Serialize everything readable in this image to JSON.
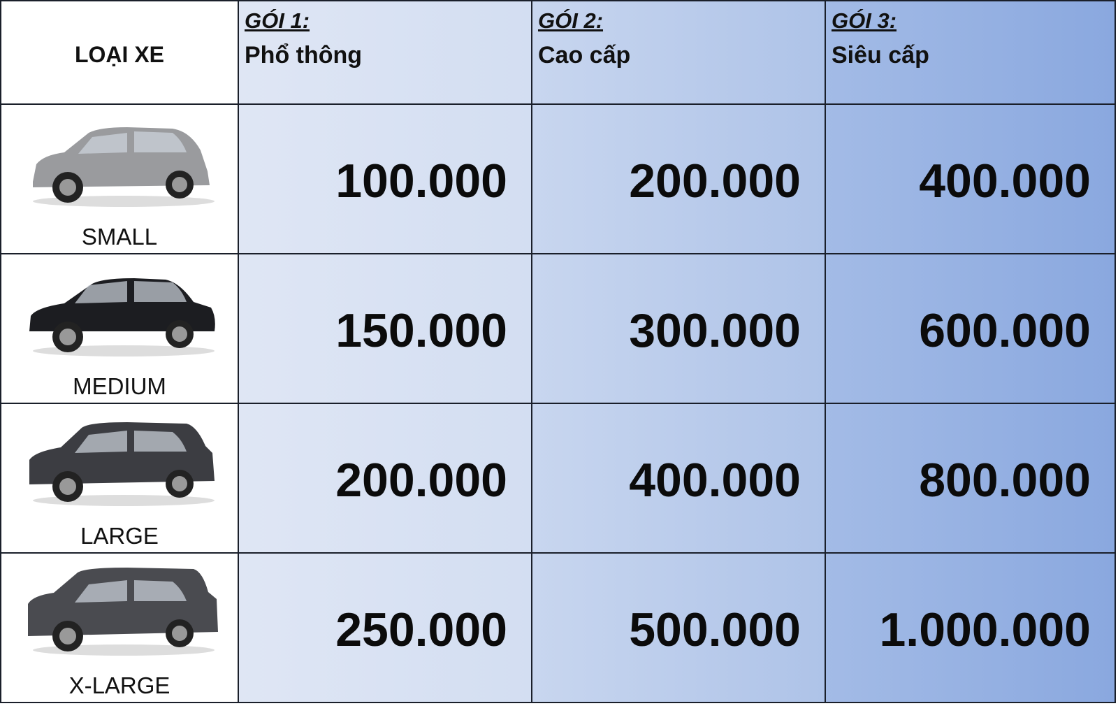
{
  "header": {
    "vehicle_type_label": "LOẠI XE",
    "packages": [
      {
        "package": "GÓI 1:",
        "tier": "Phổ thông"
      },
      {
        "package": "GÓI 2:",
        "tier": "Cao cấp"
      },
      {
        "package": "GÓI 3:",
        "tier": "Siêu cấp"
      }
    ]
  },
  "rows": [
    {
      "size": "SMALL",
      "car_image": "hatchback-car",
      "car_color": "#9a9b9e",
      "prices": [
        "100.000",
        "200.000",
        "400.000"
      ]
    },
    {
      "size": "MEDIUM",
      "car_image": "sedan-car",
      "car_color": "#1c1d21",
      "prices": [
        "150.000",
        "300.000",
        "600.000"
      ]
    },
    {
      "size": "LARGE",
      "car_image": "suv-car",
      "car_color": "#3c3d42",
      "prices": [
        "200.000",
        "400.000",
        "800.000"
      ]
    },
    {
      "size": "X-LARGE",
      "car_image": "large-suv-car",
      "car_color": "#4a4b50",
      "prices": [
        "250.000",
        "500.000",
        "1.000.000"
      ]
    }
  ]
}
